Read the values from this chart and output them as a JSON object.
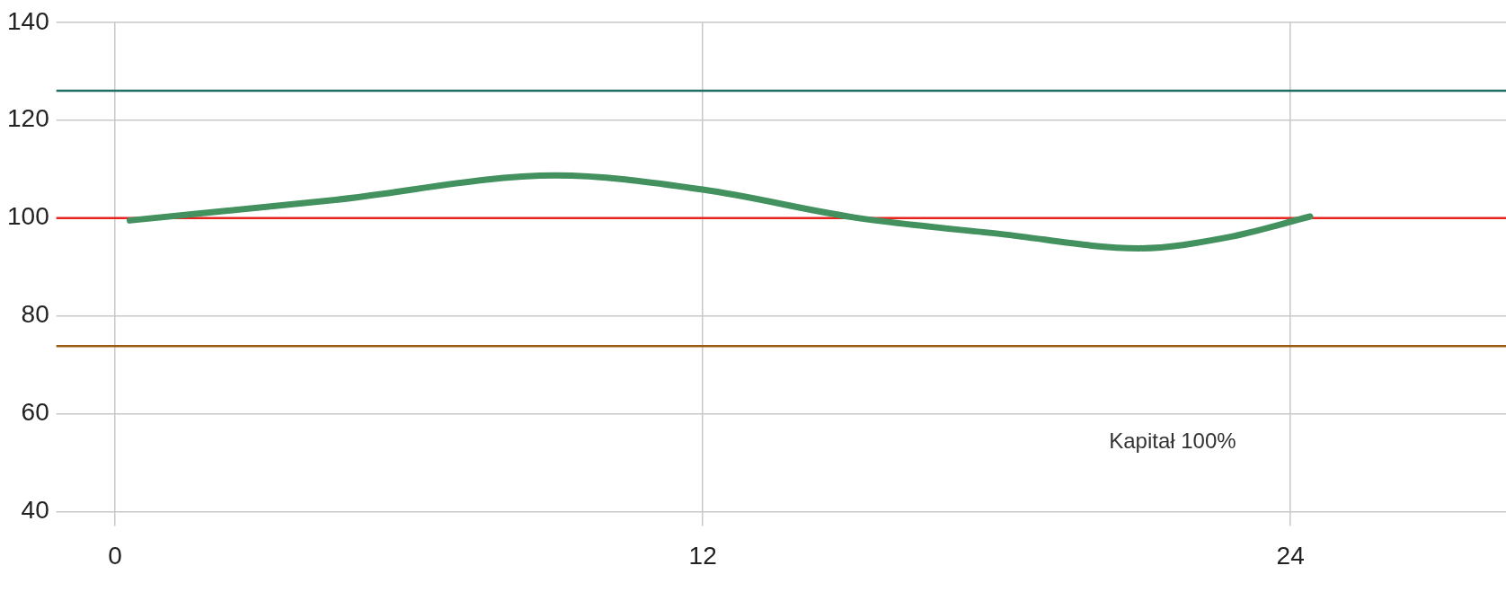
{
  "chart_data": {
    "type": "line",
    "series": [
      {
        "color": "#43915f",
        "x": [
          0.3,
          4.5,
          9,
          12,
          15.1,
          18.1,
          20.9,
          22.7,
          24.4
        ],
        "values": [
          99.5,
          103.7,
          108.7,
          105.8,
          100.1,
          96.7,
          93.8,
          96,
          100.3
        ]
      }
    ],
    "xlim": [
      -1.2,
      28.4
    ],
    "xticks": [
      0,
      12,
      24
    ],
    "ylim": [
      40,
      140
    ],
    "yticks": [
      40,
      60,
      80,
      100,
      120,
      140
    ],
    "grid": true,
    "legend": false,
    "marker": "none",
    "line_style": "solid",
    "ref_lines": [
      {
        "axis": "y",
        "value": 126,
        "color": "#1f6f63"
      },
      {
        "axis": "y",
        "value": 100,
        "color": "#e8231f"
      },
      {
        "axis": "y",
        "value": 73.8,
        "color": "#9b5a12"
      }
    ],
    "annotations": [
      "Kapitał 100%"
    ]
  }
}
